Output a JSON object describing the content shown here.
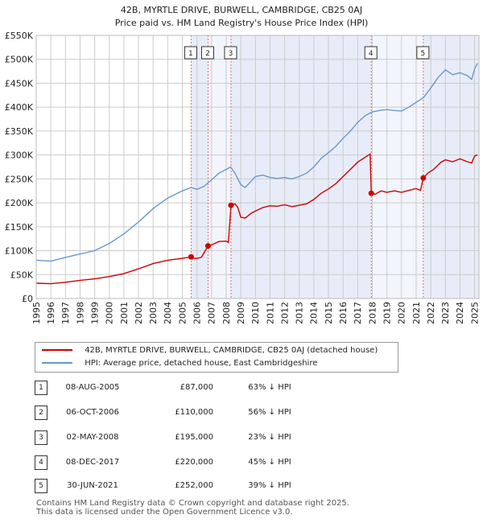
{
  "chart_data": {
    "type": "line",
    "title": "42B, MYRTLE DRIVE, BURWELL, CAMBRIDGE, CB25 0AJ",
    "subtitle": "Price paid vs. HM Land Registry's House Price Index (HPI)",
    "xlim": [
      1995,
      2025.3
    ],
    "ylim": [
      0,
      550000
    ],
    "x_ticks": [
      "1995",
      "1996",
      "1997",
      "1998",
      "1999",
      "2000",
      "2001",
      "2002",
      "2003",
      "2004",
      "2005",
      "2006",
      "2007",
      "2008",
      "2009",
      "2010",
      "2011",
      "2012",
      "2013",
      "2014",
      "2015",
      "2016",
      "2017",
      "2018",
      "2019",
      "2020",
      "2021",
      "2022",
      "2023",
      "2024",
      "2025"
    ],
    "y_ticks": [
      {
        "value": 0,
        "label": "£0"
      },
      {
        "value": 50000,
        "label": "£50K"
      },
      {
        "value": 100000,
        "label": "£100K"
      },
      {
        "value": 150000,
        "label": "£150K"
      },
      {
        "value": 200000,
        "label": "£200K"
      },
      {
        "value": 250000,
        "label": "£250K"
      },
      {
        "value": 300000,
        "label": "£300K"
      },
      {
        "value": 350000,
        "label": "£350K"
      },
      {
        "value": 400000,
        "label": "£400K"
      },
      {
        "value": 450000,
        "label": "£450K"
      },
      {
        "value": 500000,
        "label": "£500K"
      },
      {
        "value": 550000,
        "label": "£550K"
      }
    ],
    "grid": true,
    "series": [
      {
        "name": "42B, MYRTLE DRIVE, BURWELL, CAMBRIDGE, CB25 0AJ (detached house)",
        "color": "#cc0000",
        "points": [
          [
            1995,
            32000
          ],
          [
            1996,
            31000
          ],
          [
            1997,
            34000
          ],
          [
            1998,
            38000
          ],
          [
            1999,
            41000
          ],
          [
            2000,
            46000
          ],
          [
            2001,
            52000
          ],
          [
            2002,
            62000
          ],
          [
            2003,
            73000
          ],
          [
            2004,
            80000
          ],
          [
            2005,
            84000
          ],
          [
            2005.6,
            87000
          ],
          [
            2005.75,
            84000
          ],
          [
            2006.0,
            84000
          ],
          [
            2006.3,
            86000
          ],
          [
            2006.76,
            110000
          ],
          [
            2007.0,
            112000
          ],
          [
            2007.5,
            119000
          ],
          [
            2008.0,
            120000
          ],
          [
            2008.15,
            117000
          ],
          [
            2008.33,
            195000
          ],
          [
            2008.6,
            198000
          ],
          [
            2008.8,
            190000
          ],
          [
            2009.0,
            170000
          ],
          [
            2009.3,
            168000
          ],
          [
            2009.7,
            178000
          ],
          [
            2010.0,
            183000
          ],
          [
            2010.5,
            190000
          ],
          [
            2011,
            194000
          ],
          [
            2011.5,
            193000
          ],
          [
            2012,
            196000
          ],
          [
            2012.5,
            192000
          ],
          [
            2013,
            195000
          ],
          [
            2013.5,
            198000
          ],
          [
            2014,
            207000
          ],
          [
            2014.5,
            220000
          ],
          [
            2015,
            229000
          ],
          [
            2015.5,
            240000
          ],
          [
            2016,
            255000
          ],
          [
            2016.5,
            270000
          ],
          [
            2017,
            285000
          ],
          [
            2017.5,
            295000
          ],
          [
            2017.85,
            302000
          ],
          [
            2017.93,
            220000
          ],
          [
            2018.2,
            218000
          ],
          [
            2018.6,
            225000
          ],
          [
            2019,
            222000
          ],
          [
            2019.5,
            225000
          ],
          [
            2020,
            222000
          ],
          [
            2020.5,
            226000
          ],
          [
            2021.0,
            230000
          ],
          [
            2021.3,
            226000
          ],
          [
            2021.49,
            252000
          ],
          [
            2021.8,
            262000
          ],
          [
            2022.2,
            270000
          ],
          [
            2022.7,
            285000
          ],
          [
            2023,
            290000
          ],
          [
            2023.5,
            286000
          ],
          [
            2024,
            292000
          ],
          [
            2024.5,
            286000
          ],
          [
            2024.8,
            283000
          ],
          [
            2025.0,
            298000
          ],
          [
            2025.2,
            300000
          ]
        ]
      },
      {
        "name": "HPI: Average price, detached house, East Cambridgeshire",
        "color": "#6699cc",
        "points": [
          [
            1995,
            80000
          ],
          [
            1996,
            78000
          ],
          [
            1997,
            86000
          ],
          [
            1998,
            93000
          ],
          [
            1999,
            100000
          ],
          [
            2000,
            115000
          ],
          [
            2001,
            135000
          ],
          [
            2002,
            160000
          ],
          [
            2003,
            188000
          ],
          [
            2004,
            210000
          ],
          [
            2005,
            225000
          ],
          [
            2005.6,
            232000
          ],
          [
            2006.0,
            228000
          ],
          [
            2006.5,
            235000
          ],
          [
            2007.0,
            248000
          ],
          [
            2007.5,
            262000
          ],
          [
            2008.0,
            270000
          ],
          [
            2008.3,
            275000
          ],
          [
            2008.6,
            262000
          ],
          [
            2009.0,
            238000
          ],
          [
            2009.3,
            232000
          ],
          [
            2009.7,
            245000
          ],
          [
            2010.0,
            255000
          ],
          [
            2010.5,
            258000
          ],
          [
            2011,
            253000
          ],
          [
            2011.5,
            251000
          ],
          [
            2012,
            253000
          ],
          [
            2012.5,
            250000
          ],
          [
            2013,
            255000
          ],
          [
            2013.5,
            262000
          ],
          [
            2014,
            275000
          ],
          [
            2014.5,
            293000
          ],
          [
            2015,
            305000
          ],
          [
            2015.5,
            318000
          ],
          [
            2016,
            335000
          ],
          [
            2016.5,
            350000
          ],
          [
            2017,
            368000
          ],
          [
            2017.5,
            382000
          ],
          [
            2018,
            390000
          ],
          [
            2018.5,
            393000
          ],
          [
            2019,
            395000
          ],
          [
            2019.5,
            393000
          ],
          [
            2020,
            392000
          ],
          [
            2020.5,
            400000
          ],
          [
            2021.0,
            410000
          ],
          [
            2021.5,
            420000
          ],
          [
            2022,
            440000
          ],
          [
            2022.5,
            462000
          ],
          [
            2023,
            478000
          ],
          [
            2023.5,
            468000
          ],
          [
            2024,
            472000
          ],
          [
            2024.5,
            466000
          ],
          [
            2024.8,
            458000
          ],
          [
            2025.0,
            480000
          ],
          [
            2025.2,
            492000
          ]
        ]
      }
    ],
    "sales": [
      {
        "id": "1",
        "x": 2005.6,
        "y": 87000
      },
      {
        "id": "2",
        "x": 2006.76,
        "y": 110000
      },
      {
        "id": "3",
        "x": 2008.33,
        "y": 195000
      },
      {
        "id": "4",
        "x": 2017.93,
        "y": 220000
      },
      {
        "id": "5",
        "x": 2021.49,
        "y": 252000
      }
    ],
    "shaded_periods": [
      [
        2005.6,
        2006.76
      ],
      [
        2006.76,
        2008.33
      ],
      [
        2008.33,
        2017.93
      ],
      [
        2017.93,
        2021.49
      ],
      [
        2021.49,
        2025.3
      ]
    ],
    "legend_position": "below"
  },
  "table": [
    {
      "num": "1",
      "date": "08-AUG-2005",
      "price": "£87,000",
      "hpi": "63% ↓ HPI"
    },
    {
      "num": "2",
      "date": "06-OCT-2006",
      "price": "£110,000",
      "hpi": "56% ↓ HPI"
    },
    {
      "num": "3",
      "date": "02-MAY-2008",
      "price": "£195,000",
      "hpi": "23% ↓ HPI"
    },
    {
      "num": "4",
      "date": "08-DEC-2017",
      "price": "£220,000",
      "hpi": "45% ↓ HPI"
    },
    {
      "num": "5",
      "date": "30-JUN-2021",
      "price": "£252,000",
      "hpi": "39% ↓ HPI"
    }
  ],
  "footer": {
    "line1": "Contains HM Land Registry data © Crown copyright and database right 2025.",
    "line2": "This data is licensed under the Open Government Licence v3.0."
  }
}
